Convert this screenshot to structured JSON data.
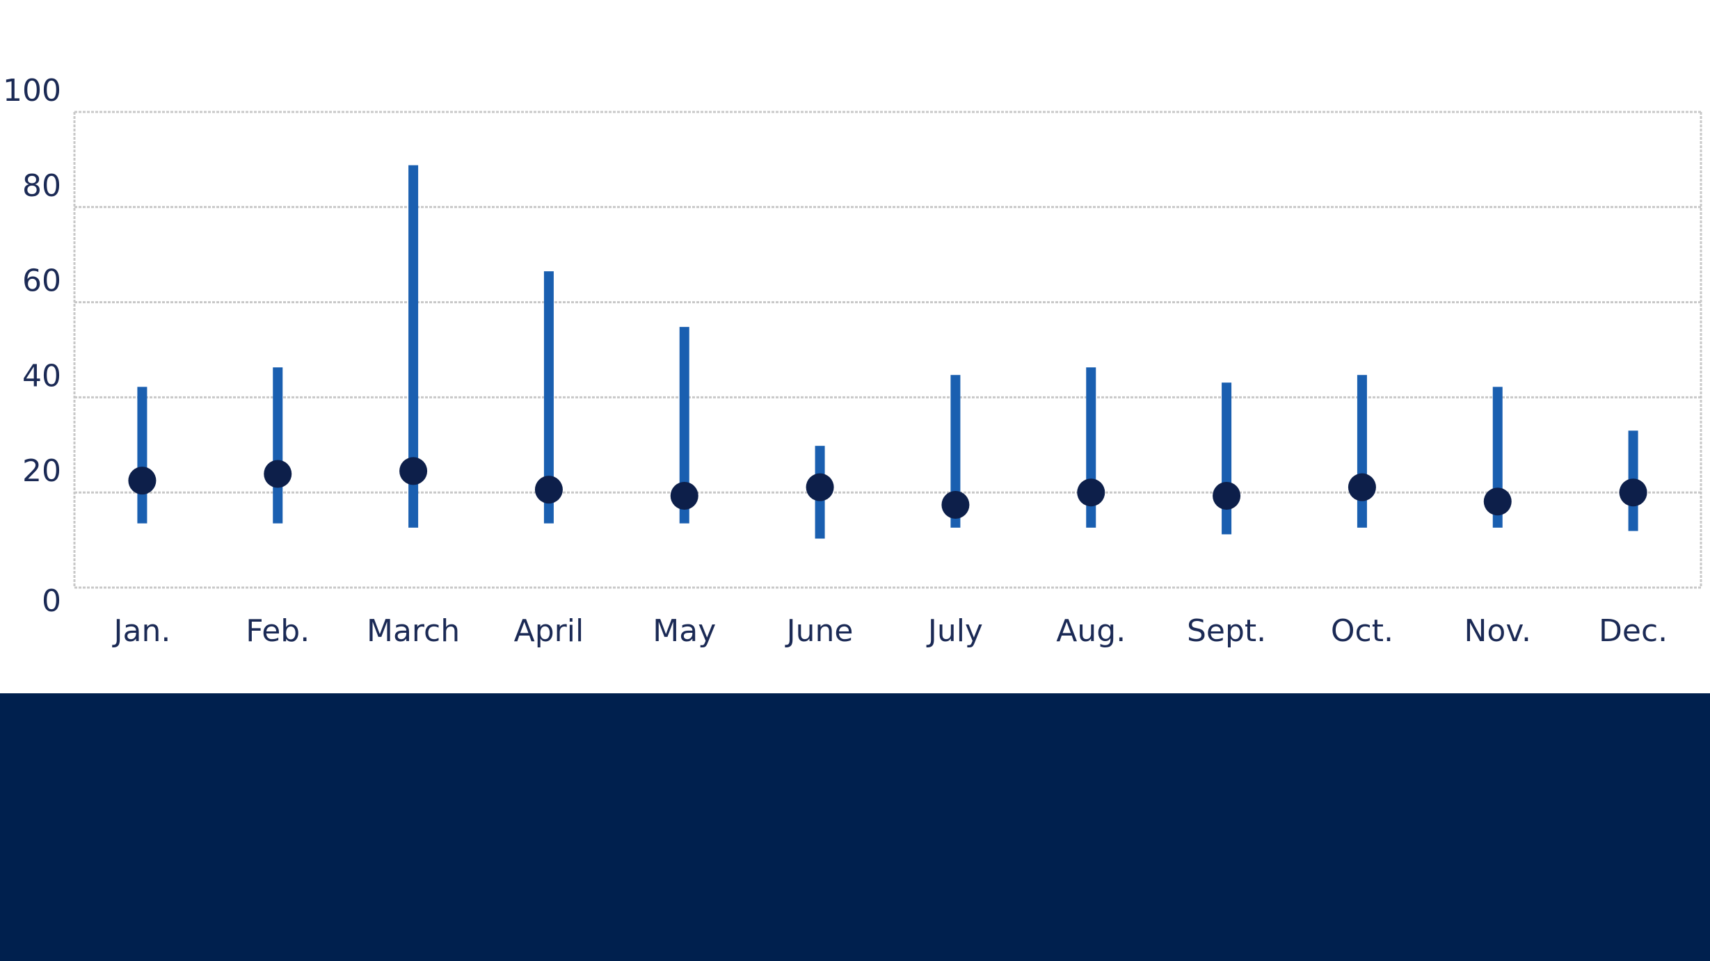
{
  "chart_data": {
    "type": "range",
    "categories": [
      "Jan.",
      "Feb.",
      "March",
      "April",
      "May",
      "June",
      "July",
      "Aug.",
      "Sept.",
      "Oct.",
      "Nov.",
      "Dec."
    ],
    "low": [
      13.5,
      13.5,
      12.6,
      13.5,
      13.5,
      10.3,
      12.6,
      12.6,
      11.2,
      12.6,
      12.6,
      11.9
    ],
    "high": [
      42.2,
      46.3,
      88.8,
      66.5,
      54.8,
      29.8,
      44.7,
      46.3,
      43.1,
      44.7,
      42.2,
      33
    ],
    "values": [
      22.5,
      23.9,
      24.5,
      20.6,
      19.3,
      21.1,
      17.4,
      20,
      19.3,
      21.1,
      18.1,
      20
    ],
    "bar_color": "#1a5fb0",
    "color": "#0d1f4a",
    "ylim": [
      0,
      100
    ],
    "yticks": [
      0,
      20,
      40,
      60,
      80,
      100
    ],
    "grid": true
  }
}
